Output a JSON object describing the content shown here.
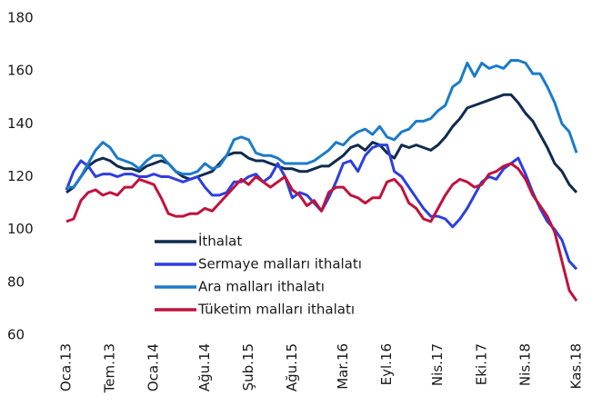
{
  "chart_data": {
    "type": "line",
    "categories": [
      "Oca.13",
      null,
      null,
      null,
      null,
      null,
      "Tem.13",
      null,
      null,
      null,
      null,
      null,
      "Oca.14",
      null,
      null,
      null,
      null,
      null,
      null,
      "Ağu.14",
      null,
      null,
      null,
      null,
      null,
      "Şub.15",
      null,
      null,
      null,
      null,
      null,
      "Ağu.15",
      null,
      null,
      null,
      null,
      null,
      null,
      "Mar.16",
      null,
      null,
      null,
      null,
      null,
      "Eyl.16",
      null,
      null,
      null,
      null,
      null,
      null,
      "Nis.17",
      null,
      null,
      null,
      null,
      null,
      "Eki.17",
      null,
      null,
      null,
      null,
      null,
      "Nis.18",
      null,
      null,
      null,
      null,
      null,
      null,
      "Kas.18"
    ],
    "series": [
      {
        "name": "İthalat",
        "color": "#0f2b4f",
        "values": [
          114,
          116,
          120,
          124,
          126,
          127,
          126,
          124,
          123,
          123,
          122,
          124,
          125,
          126,
          125,
          122,
          120,
          119,
          120,
          121,
          122,
          125,
          128,
          129,
          129,
          127,
          126,
          126,
          125,
          124,
          123,
          123,
          122,
          122,
          123,
          124,
          124,
          126,
          128,
          131,
          132,
          130,
          133,
          132,
          129,
          127,
          132,
          131,
          132,
          131,
          130,
          132,
          135,
          139,
          142,
          146,
          147,
          148,
          149,
          150,
          151,
          151,
          148,
          144,
          141,
          136,
          131,
          125,
          122,
          117,
          114
        ]
      },
      {
        "name": "Sermaye malları ithalatı",
        "color": "#2d3fe0",
        "values": [
          115,
          122,
          126,
          124,
          120,
          121,
          121,
          120,
          121,
          121,
          120,
          120,
          121,
          120,
          120,
          119,
          118,
          119,
          120,
          116,
          113,
          113,
          114,
          118,
          118,
          120,
          121,
          118,
          120,
          125,
          120,
          112,
          114,
          113,
          110,
          107,
          112,
          118,
          125,
          126,
          122,
          128,
          131,
          132,
          132,
          122,
          120,
          116,
          112,
          108,
          105,
          105,
          104,
          101,
          104,
          108,
          113,
          118,
          120,
          119,
          123,
          125,
          127,
          121,
          114,
          108,
          103,
          100,
          96,
          88,
          85
        ]
      },
      {
        "name": "Ara malları ithalatı",
        "color": "#1b7bcb",
        "values": [
          116,
          116,
          120,
          125,
          130,
          133,
          131,
          127,
          126,
          125,
          123,
          126,
          128,
          128,
          125,
          122,
          121,
          121,
          122,
          125,
          123,
          124,
          128,
          134,
          135,
          134,
          129,
          128,
          128,
          127,
          125,
          125,
          125,
          125,
          126,
          128,
          130,
          133,
          132,
          135,
          137,
          138,
          136,
          139,
          135,
          134,
          137,
          138,
          141,
          141,
          142,
          145,
          147,
          154,
          156,
          163,
          158,
          163,
          161,
          162,
          161,
          164,
          164,
          163,
          159,
          159,
          154,
          148,
          140,
          137,
          129
        ]
      },
      {
        "name": "Tüketim malları ithalatı",
        "color": "#c2123c",
        "values": [
          103,
          104,
          111,
          114,
          115,
          113,
          114,
          113,
          116,
          116,
          119,
          118,
          117,
          112,
          106,
          105,
          105,
          106,
          106,
          108,
          107,
          110,
          113,
          116,
          119,
          117,
          120,
          118,
          116,
          118,
          120,
          115,
          113,
          109,
          111,
          107,
          114,
          116,
          116,
          113,
          112,
          110,
          112,
          112,
          118,
          119,
          116,
          110,
          108,
          104,
          103,
          108,
          113,
          117,
          119,
          118,
          116,
          117,
          121,
          122,
          124,
          125,
          123,
          119,
          113,
          109,
          105,
          99,
          88,
          77,
          73
        ]
      }
    ],
    "ylim": [
      60,
      180
    ],
    "yticks": [
      60,
      80,
      100,
      120,
      140,
      160,
      180
    ],
    "grid": false,
    "legend": "lower center"
  }
}
